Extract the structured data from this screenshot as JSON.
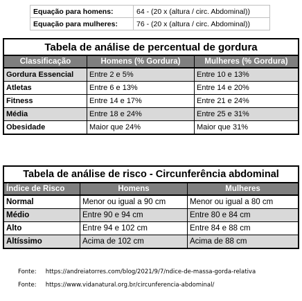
{
  "equations": [
    {
      "label": "Equação para homens:",
      "formula": "64 - (20 x (altura / circ. Abdominal))"
    },
    {
      "label": "Equação para mulheres:",
      "formula": "76 - (20 x (altura / circ. Abdominal))"
    }
  ],
  "body_fat_table": {
    "title": "Tabela de análise de percentual de gordura",
    "headers": [
      "Classificação",
      "Homens (% Gordura)",
      "Mulheres (% Gordura)"
    ],
    "rows": [
      [
        "Gordura Essencial",
        "Entre 2 e 5%",
        "Entre 10 e 13%"
      ],
      [
        "Atletas",
        "Entre 6 e 13%",
        "Entre 14 e 20%"
      ],
      [
        "Fitness",
        "Entre 14 e 17%",
        "Entre 21 e 24%"
      ],
      [
        "Média",
        "Entre 18 e 24%",
        "Entre 25 e 31%"
      ],
      [
        "Obesidade",
        "Maior que 24%",
        "Maior que 31%"
      ]
    ]
  },
  "risk_table": {
    "title": "Tabela de análise de risco - Circunferência abdominal",
    "headers": [
      "Índice de Risco",
      "Homens",
      "Mulheres"
    ],
    "rows": [
      [
        "Normal",
        "Menor ou igual a 90 cm",
        "Menor ou igual a 80 cm"
      ],
      [
        "Médio",
        "Entre 90 e 94 cm",
        "Entre 80 e 84 cm"
      ],
      [
        "Alto",
        "Entre 94 e 102 cm",
        "Entre 84 e 88 cm"
      ],
      [
        "Altíssimo",
        "Acima de 102 cm",
        "Acima de 88 cm"
      ]
    ]
  },
  "sources": [
    {
      "label": "Fonte:",
      "url": "https://andreiatorres.com/blog/2021/9/7/ndice-de-massa-gorda-relativa"
    },
    {
      "label": "Fonte:",
      "url": "https://www.vidanatural.org.br/circunferencia-abdominal/"
    }
  ],
  "colors": {
    "header_bg": "#7f7f7f",
    "alt_row_bg": "#d9d9d9",
    "grid": "#000000"
  }
}
